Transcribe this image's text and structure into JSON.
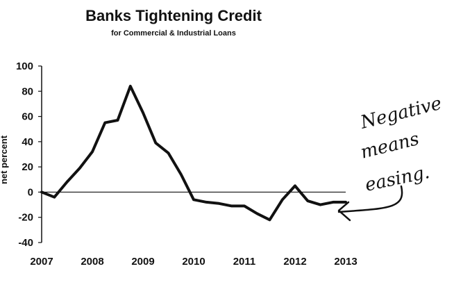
{
  "chart_data": {
    "type": "line",
    "title": "Banks Tightening Credit",
    "subtitle": "for Commercial & Industrial Loans",
    "ylabel": "net percent",
    "xlabel": "",
    "xlim": [
      2007,
      2013
    ],
    "ylim": [
      -40,
      100
    ],
    "x_ticks": [
      "2007",
      "2008",
      "2009",
      "2010",
      "2011",
      "2012",
      "2013"
    ],
    "y_ticks": [
      "100",
      "80",
      "60",
      "40",
      "20",
      "0",
      "-20",
      "-40"
    ],
    "grid": false,
    "series": [
      {
        "x": [
          2007.0,
          2007.25,
          2007.5,
          2007.75,
          2008.0,
          2008.25,
          2008.5,
          2008.75,
          2009.0,
          2009.25,
          2009.5,
          2009.75,
          2010.0,
          2010.25,
          2010.5,
          2010.75,
          2011.0,
          2011.25,
          2011.5,
          2011.75,
          2012.0,
          2012.25,
          2012.5,
          2012.75,
          2013.0
        ],
        "y": [
          0,
          -4,
          8,
          19,
          32,
          55,
          57,
          84,
          63,
          39,
          31,
          14,
          -6,
          -8,
          -9,
          -11,
          -11,
          -17,
          -22,
          -6,
          5,
          -7,
          -10,
          -8,
          -8
        ]
      }
    ],
    "annotation": {
      "lines": [
        "Negative",
        "means",
        "easing."
      ],
      "points_to_y": -8
    }
  }
}
